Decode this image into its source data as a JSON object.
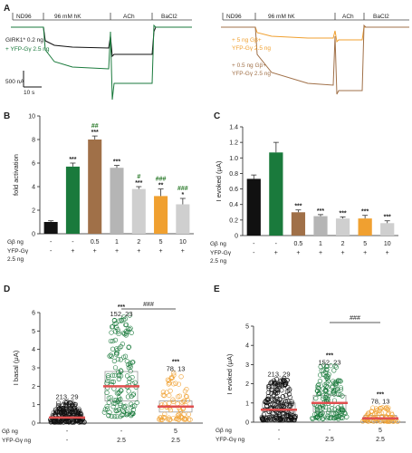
{
  "panel_letters": [
    "A",
    "B",
    "C",
    "D",
    "E"
  ],
  "colors": {
    "black": "#111111",
    "green": "#1a7a3c",
    "brown": "#a07048",
    "orange": "#f0a030",
    "gray": "#b5b5b5",
    "gray2": "#cfcfcf",
    "darkgreen_text": "#2a7a2a",
    "orange_text": "#e08a1a",
    "red": "#e05050"
  },
  "panelA": {
    "left_segments": [
      "ND96",
      "96 mM hK",
      "ACh",
      "BaCl2"
    ],
    "right_segments": [
      "ND96",
      "96 mM hK",
      "ACh",
      "BaCl2"
    ],
    "left_legend": [
      "GIRK1* 0.2 ng",
      "+ YFP-Gγ 2.5 ng"
    ],
    "right_legend": [
      "+ 5 ng Gβ+",
      "YFP-Gγ 2.5 ng",
      "+ 0.5 ng Gβ+",
      "YFP-Gγ 2.5 ng"
    ],
    "scale_y": "500 nA",
    "scale_x": "10 s"
  },
  "chart_data": [
    {
      "panel": "B",
      "type": "bar",
      "ylabel": "fold activation",
      "ylim": [
        0,
        10
      ],
      "yticks": [
        "0",
        "2",
        "4",
        "6",
        "8",
        "10"
      ],
      "row_labels": [
        "Gβ ng",
        "YFP-Gγ",
        "2.5 ng"
      ],
      "gb_ng": [
        "-",
        "-",
        "0.5",
        "1",
        "2",
        "5",
        "10"
      ],
      "yfp_gy": [
        "-",
        "+",
        "+",
        "+",
        "+",
        "+",
        "+"
      ],
      "values": [
        1.0,
        5.7,
        8.0,
        5.6,
        3.8,
        3.2,
        2.5
      ],
      "errors": [
        0.1,
        0.3,
        0.3,
        0.2,
        0.2,
        0.6,
        0.5
      ],
      "stars": [
        "",
        "***",
        "***",
        "***",
        "***",
        "**",
        "*"
      ],
      "annotations": [
        "",
        "",
        "##",
        "",
        "#",
        "###",
        "###"
      ]
    },
    {
      "panel": "C",
      "type": "bar",
      "ylabel": "I evoked (μA)",
      "ylim": [
        0,
        1.4
      ],
      "yticks": [
        "0",
        "0.2",
        "0.4",
        "0.6",
        "0.8",
        "1.0",
        "1.2",
        "1.4"
      ],
      "row_labels": [
        "Gβ ng",
        "YFP-Gγ",
        "2.5 ng"
      ],
      "gb_ng": [
        "-",
        "-",
        "0.5",
        "1",
        "2",
        "5",
        "10"
      ],
      "yfp_gy": [
        "-",
        "+",
        "+",
        "+",
        "+",
        "+",
        "+"
      ],
      "values": [
        0.73,
        1.07,
        0.3,
        0.25,
        0.22,
        0.22,
        0.16
      ],
      "errors": [
        0.05,
        0.13,
        0.03,
        0.02,
        0.02,
        0.04,
        0.03
      ],
      "stars": [
        "",
        "",
        "***",
        "***",
        "***",
        "***",
        "***"
      ]
    },
    {
      "panel": "D",
      "type": "scatter",
      "ylabel": "I basal (μA)",
      "ylim": [
        0,
        6
      ],
      "yticks": [
        "0",
        "1",
        "2",
        "3",
        "4",
        "5",
        "6"
      ],
      "row_labels": [
        "Gβ ng",
        "YFP-Gγ ng"
      ],
      "gb_ng": [
        "-",
        "-",
        "5"
      ],
      "yfp_gy": [
        "-",
        "2.5",
        "2.5"
      ],
      "medians": [
        0.3,
        2.0,
        0.9
      ],
      "box_q1": [
        0.15,
        1.2,
        0.6
      ],
      "box_q3": [
        0.5,
        2.8,
        1.2
      ],
      "n_labels": [
        "213, 29",
        "152, 23",
        "78, 13"
      ],
      "stars": [
        "",
        "***",
        "***"
      ],
      "bracket": "###"
    },
    {
      "panel": "E",
      "type": "scatter",
      "ylabel": "I evoked (μA)",
      "ylim": [
        0,
        5
      ],
      "yticks": [
        "0",
        "1",
        "2",
        "3",
        "4",
        "5"
      ],
      "row_labels": [
        "Gβ ng",
        "YFP-Gγ ng"
      ],
      "gb_ng": [
        "-",
        "-",
        "5"
      ],
      "yfp_gy": [
        "-",
        "2.5",
        "2.5"
      ],
      "medians": [
        0.65,
        1.0,
        0.2
      ],
      "box_q1": [
        0.35,
        0.55,
        0.1
      ],
      "box_q3": [
        1.0,
        1.4,
        0.35
      ],
      "n_labels": [
        "213, 29",
        "152, 23",
        "78, 13"
      ],
      "stars": [
        "",
        "***",
        "***"
      ],
      "bracket": "###"
    }
  ]
}
